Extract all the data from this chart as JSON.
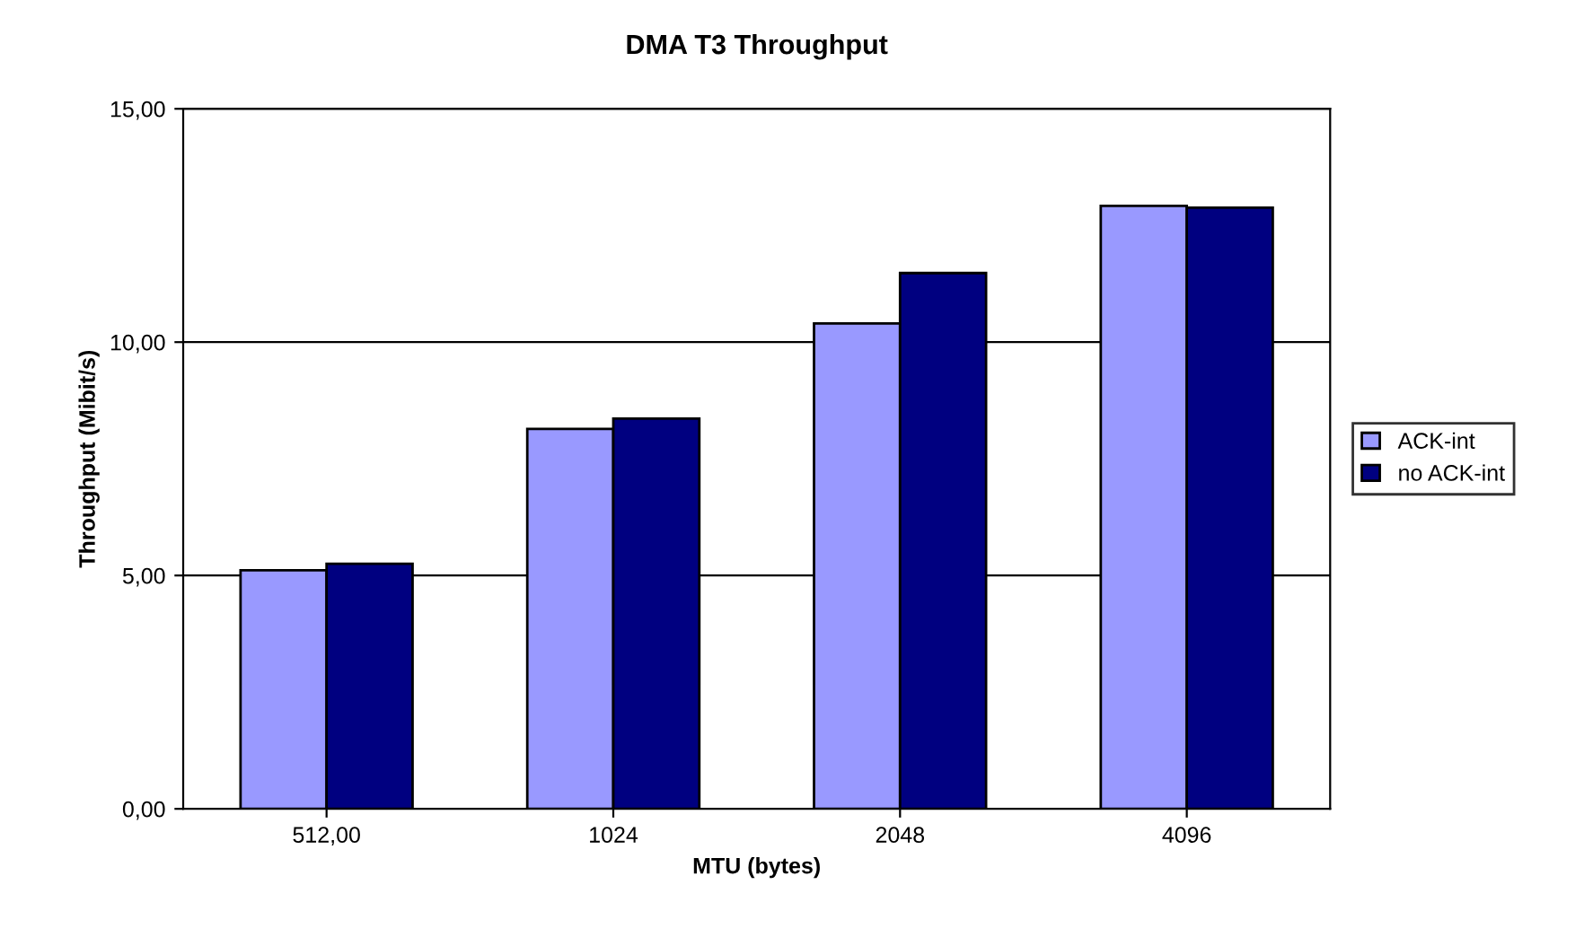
{
  "chart_data": {
    "type": "bar",
    "title": "DMA T3 Throughput",
    "xlabel": "MTU (bytes)",
    "ylabel": "Throughput (Mibit/s)",
    "categories": [
      "512,00",
      "1024",
      "2048",
      "4096"
    ],
    "series": [
      {
        "name": "ACK-int",
        "color": "#9999ff",
        "values": [
          5.11,
          8.14,
          10.4,
          12.92
        ]
      },
      {
        "name": "no ACK-int",
        "color": "#000080",
        "values": [
          5.25,
          8.36,
          11.48,
          12.88
        ]
      }
    ],
    "ylim": [
      0,
      15
    ],
    "yticks": [
      {
        "value": 0,
        "label": "0,00"
      },
      {
        "value": 5,
        "label": "5,00"
      },
      {
        "value": 10,
        "label": "10,00"
      },
      {
        "value": 15,
        "label": "15,00"
      }
    ],
    "grid": "y",
    "legend": "right"
  }
}
